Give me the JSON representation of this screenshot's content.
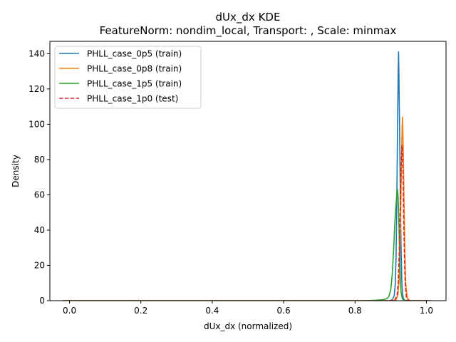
{
  "chart_data": {
    "type": "line",
    "title": "dUx_dx KDE",
    "subtitle": "FeatureNorm: nondim_local, Transport: , Scale: minmax",
    "xlabel": "dUx_dx (normalized)",
    "ylabel": "Density",
    "xlim": [
      -0.055,
      1.055
    ],
    "ylim": [
      0,
      147
    ],
    "xticks": [
      0.0,
      0.2,
      0.4,
      0.6,
      0.8,
      1.0
    ],
    "xtick_labels": [
      "0.0",
      "0.2",
      "0.4",
      "0.6",
      "0.8",
      "1.0"
    ],
    "yticks": [
      0,
      20,
      40,
      60,
      80,
      100,
      120,
      140
    ],
    "ytick_labels": [
      "0",
      "20",
      "40",
      "60",
      "80",
      "100",
      "120",
      "140"
    ],
    "grid": false,
    "legend_position": "upper left",
    "series": [
      {
        "name": "PHLL_case_0p5 (train)",
        "color": "#1f77b4",
        "dash": "solid",
        "x": [
          -0.02,
          0.0,
          0.5,
          0.85,
          0.895,
          0.905,
          0.91,
          0.913,
          0.915,
          0.917,
          0.919,
          0.921,
          0.922,
          0.923,
          0.925,
          0.927,
          0.929,
          0.931,
          0.933,
          0.936,
          0.94,
          0.95,
          1.0,
          1.01
        ],
        "y": [
          0,
          0,
          0,
          0,
          0,
          0.5,
          3,
          10,
          25,
          55,
          95,
          130,
          141,
          128,
          95,
          60,
          30,
          12,
          4,
          1,
          0.2,
          0,
          0,
          0
        ]
      },
      {
        "name": "PHLL_case_0p8 (train)",
        "color": "#ff7f0e",
        "dash": "solid",
        "x": [
          -0.02,
          0.0,
          0.5,
          0.85,
          0.905,
          0.915,
          0.92,
          0.923,
          0.926,
          0.928,
          0.93,
          0.932,
          0.933,
          0.934,
          0.936,
          0.938,
          0.94,
          0.942,
          0.945,
          0.948,
          0.952,
          0.96,
          1.0,
          1.01
        ],
        "y": [
          0,
          0,
          0,
          0,
          0,
          0.5,
          3,
          10,
          25,
          48,
          78,
          98,
          104,
          97,
          75,
          48,
          25,
          10,
          4,
          1,
          0.2,
          0,
          0,
          0
        ]
      },
      {
        "name": "PHLL_case_1p5 (train)",
        "color": "#2ca02c",
        "dash": "solid",
        "x": [
          -0.02,
          0.0,
          0.5,
          0.83,
          0.86,
          0.88,
          0.89,
          0.895,
          0.9,
          0.904,
          0.908,
          0.911,
          0.914,
          0.917,
          0.919,
          0.921,
          0.923,
          0.925,
          0.927,
          0.929,
          0.932,
          0.935,
          0.94,
          0.95,
          1.0,
          1.01
        ],
        "y": [
          0,
          0,
          0,
          0,
          0.3,
          0.6,
          1.2,
          2.5,
          6,
          14,
          28,
          42,
          52,
          60,
          63,
          58,
          44,
          26,
          12,
          5,
          1.5,
          0.5,
          0.2,
          0,
          0,
          0
        ]
      },
      {
        "name": "PHLL_case_1p0 (test)",
        "color": "#d62728",
        "dash": "dashed",
        "x": [
          -0.02,
          0.0,
          0.5,
          0.85,
          0.9,
          0.912,
          0.918,
          0.921,
          0.924,
          0.927,
          0.929,
          0.931,
          0.932,
          0.933,
          0.935,
          0.937,
          0.939,
          0.941,
          0.944,
          0.948,
          0.955,
          1.0,
          1.01
        ],
        "y": [
          0,
          0,
          0,
          0,
          0,
          0.5,
          3,
          10,
          28,
          55,
          76,
          86,
          88,
          84,
          65,
          40,
          20,
          8,
          2,
          0.5,
          0,
          0,
          0
        ]
      }
    ]
  }
}
